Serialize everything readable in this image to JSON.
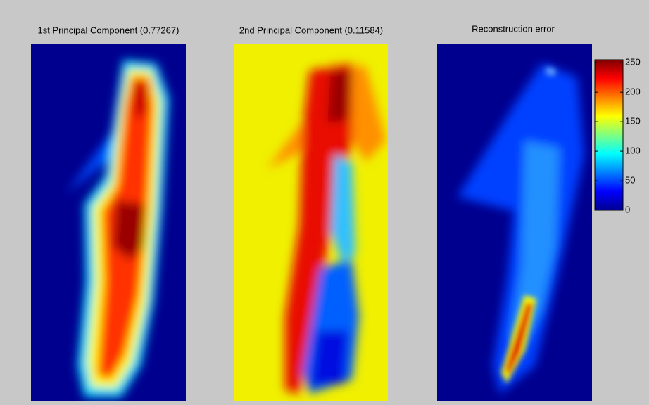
{
  "chart_data": {
    "type": "heatmap",
    "panels": [
      {
        "title": "1st Principal Component (0.77267)"
      },
      {
        "title": "2nd Principal Component (0.11584)"
      },
      {
        "title": "Reconstruction error"
      }
    ],
    "colorbar": {
      "colormap": "jet",
      "ylim": [
        0,
        255
      ],
      "yticks": [
        0,
        50,
        100,
        150,
        200,
        250
      ]
    }
  }
}
